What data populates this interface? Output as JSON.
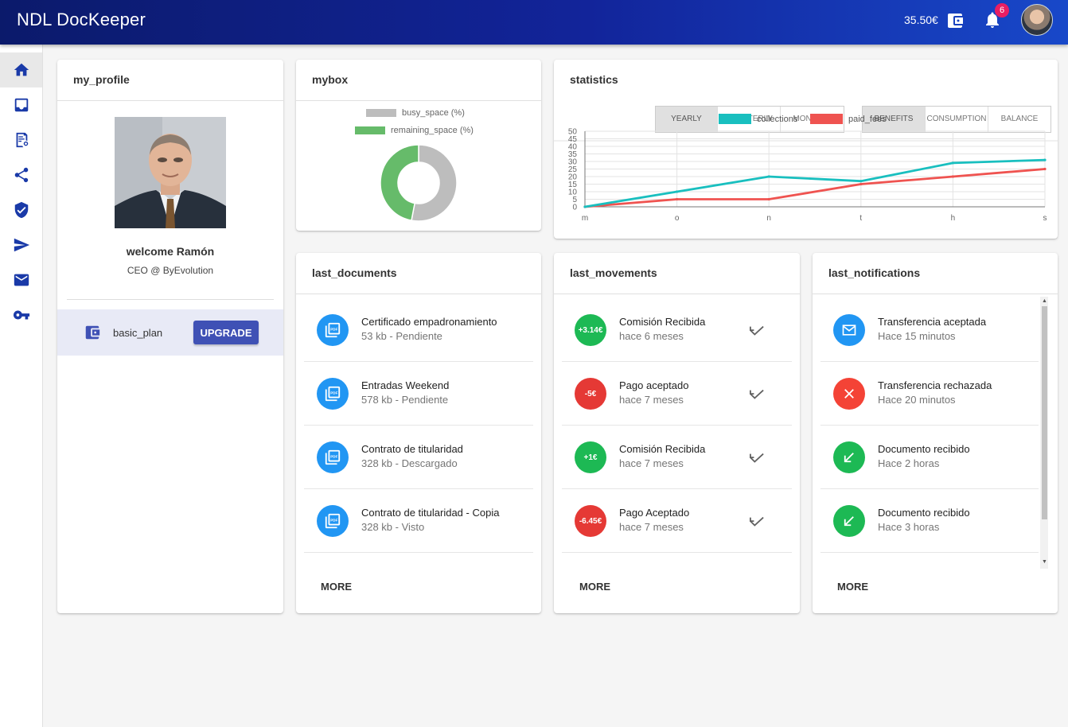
{
  "app": {
    "title": "NDL DocKeeper",
    "balance": "35.50€",
    "notifications_count": "6"
  },
  "nav": {
    "items": [
      {
        "icon": "home-icon"
      },
      {
        "icon": "inbox-icon"
      },
      {
        "icon": "certificate-icon"
      },
      {
        "icon": "share-icon"
      },
      {
        "icon": "shield-icon"
      },
      {
        "icon": "send-icon"
      },
      {
        "icon": "mail-icon"
      },
      {
        "icon": "key-icon"
      }
    ]
  },
  "profile": {
    "title": "my_profile",
    "welcome": "welcome Ramón",
    "role": "CEO @ ByEvolution",
    "plan_label": "basic_plan",
    "upgrade_label": "UPGRADE"
  },
  "mybox": {
    "title": "mybox",
    "legend": {
      "busy": "busy_space (%)",
      "remaining": "remaining_space (%)"
    },
    "colors": {
      "busy": "#bdbdbd",
      "remaining": "#66bb6a"
    },
    "busy_percent": 53,
    "remaining_percent": 47
  },
  "statistics": {
    "title": "statistics",
    "period_tabs": [
      "YEARLY",
      "QUARTERLY",
      "MONTHLY"
    ],
    "metric_tabs": [
      "BENEFITS",
      "CONSUMPTION",
      "BALANCE"
    ]
  },
  "chart_data": {
    "type": "line",
    "x": [
      "m",
      "o",
      "n",
      "t",
      "h",
      "s"
    ],
    "series": [
      {
        "name": "collections",
        "color": "#19bfbf",
        "values": [
          0,
          10,
          20,
          17,
          29,
          31
        ]
      },
      {
        "name": "paid_fees",
        "color": "#ef5350",
        "values": [
          0,
          5,
          5,
          15,
          20,
          25
        ]
      }
    ],
    "ylim": [
      0,
      50
    ],
    "yticks": [
      0,
      5,
      10,
      15,
      20,
      25,
      30,
      35,
      40,
      45,
      50
    ],
    "grid": true,
    "legend": "top"
  },
  "documents": {
    "title": "last_documents",
    "more_label": "MORE",
    "items": [
      {
        "name": "Certificado empadronamiento",
        "meta": "53 kb - Pendiente"
      },
      {
        "name": "Entradas Weekend",
        "meta": "578 kb - Pendiente"
      },
      {
        "name": "Contrato de titularidad",
        "meta": "328 kb - Descargado"
      },
      {
        "name": "Contrato de titularidad - Copia",
        "meta": "328 kb - Visto"
      }
    ]
  },
  "movements": {
    "title": "last_movements",
    "more_label": "MORE",
    "items": [
      {
        "amount": "+3.14€",
        "name": "Comisión Recibida",
        "when": "hace 6 meses",
        "color": "#1db954"
      },
      {
        "amount": "-5€",
        "name": "Pago aceptado",
        "when": "hace 7 meses",
        "color": "#e53935"
      },
      {
        "amount": "+1€",
        "name": "Comisión Recibida",
        "when": "hace 7 meses",
        "color": "#1db954"
      },
      {
        "amount": "-6.45€",
        "name": "Pago Aceptado",
        "when": "hace 7 meses",
        "color": "#e53935"
      }
    ]
  },
  "notifications": {
    "title": "last_notifications",
    "more_label": "MORE",
    "items": [
      {
        "icon": "mail-icon",
        "name": "Transferencia aceptada",
        "when": "Hace 15 minutos",
        "color": "#2196f3"
      },
      {
        "icon": "close-icon",
        "name": "Transferencia rechazada",
        "when": "Hace 20 minutos",
        "color": "#f44336"
      },
      {
        "icon": "arrow-down-left-icon",
        "name": "Documento recibido",
        "when": "Hace 2 horas",
        "color": "#1db954"
      },
      {
        "icon": "arrow-down-left-icon",
        "name": "Documento recibido",
        "when": "Hace 3 horas",
        "color": "#1db954"
      }
    ]
  }
}
